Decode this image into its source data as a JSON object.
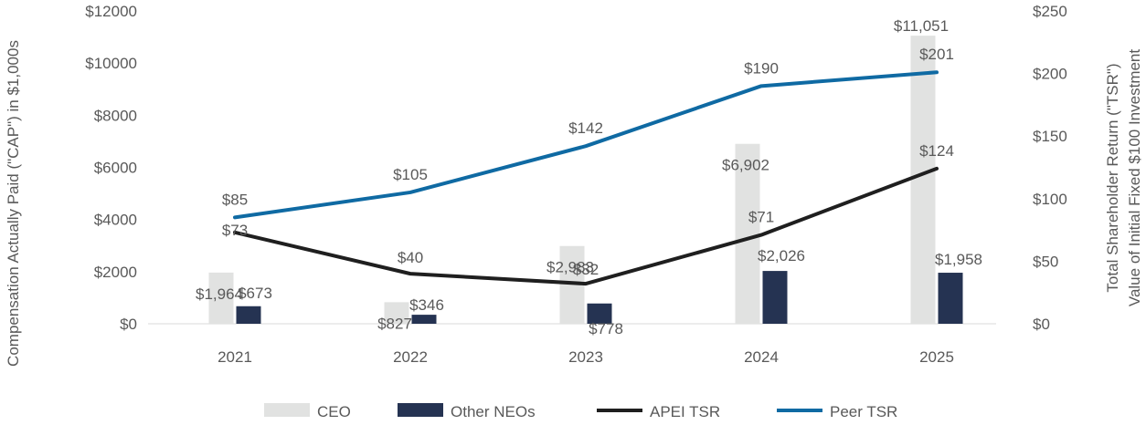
{
  "chart_data": {
    "type": "bar",
    "categories": [
      "2021",
      "2022",
      "2023",
      "2024",
      "2025"
    ],
    "left_axis": {
      "label": "Compensation Actually Paid (\"CAP\") in $1,000s",
      "range": [
        0,
        12000
      ],
      "ticks": [
        "$0",
        "$2000",
        "$4000",
        "$6000",
        "$8000",
        "$10000",
        "$12000"
      ]
    },
    "right_axis": {
      "label_line1": "Total Shareholder Return (\"TSR\")",
      "label_line2": "Value of Initial Fixed $100 Investment",
      "range": [
        0,
        250
      ],
      "ticks": [
        "$0",
        "$50",
        "$100",
        "$150",
        "$200",
        "$250"
      ]
    },
    "series": [
      {
        "name": "CEO",
        "kind": "bar",
        "axis": "left",
        "color": "#E1E2E1",
        "values": [
          1964,
          827,
          2983,
          6902,
          11051
        ],
        "labels": [
          "$1,964",
          "$827",
          "$2,983",
          "$6,902",
          "$11,051"
        ]
      },
      {
        "name": "Other NEOs",
        "kind": "bar",
        "axis": "left",
        "color": "#253352",
        "values": [
          673,
          346,
          778,
          2026,
          1958
        ],
        "labels": [
          "$673",
          "$346",
          "$778",
          "$2,026",
          "$1,958"
        ]
      },
      {
        "name": "APEI TSR",
        "kind": "line",
        "axis": "right",
        "color": "#1F1F1F",
        "values": [
          73,
          40,
          32,
          71,
          124
        ],
        "labels": [
          "$73",
          "$40",
          "$32",
          "$71",
          "$124"
        ]
      },
      {
        "name": "Peer TSR",
        "kind": "line",
        "axis": "right",
        "color": "#0F6AA3",
        "values": [
          85,
          105,
          142,
          190,
          201
        ],
        "labels": [
          "$85",
          "$105",
          "$142",
          "$190",
          "$201"
        ]
      }
    ],
    "legend_position": "bottom"
  }
}
